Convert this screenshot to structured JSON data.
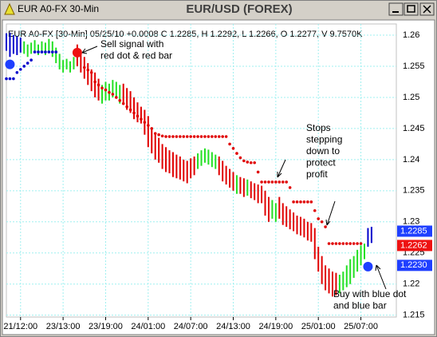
{
  "window_title": "EUR A0-FX 30-Min",
  "chart_data": {
    "type": "ohlc",
    "title": "EUR/USD (FOREX)",
    "subtitle": "EUR A0-FX [30-Min] 05/25/10  +0.0008 C 1.2285, H 1.2292, L 1.2266, O 1.2277, V 9.7570K",
    "xlim": [
      0,
      110
    ],
    "ylim": [
      1.2147,
      1.2618
    ],
    "xticks": [
      {
        "value": 4,
        "label": "21/12:00"
      },
      {
        "value": 16,
        "label": "23/13:00"
      },
      {
        "value": 28,
        "label": "23/19:00"
      },
      {
        "value": 40,
        "label": "24/01:00"
      },
      {
        "value": 52,
        "label": "24/07:00"
      },
      {
        "value": 64,
        "label": "24/13:00"
      },
      {
        "value": 76,
        "label": "24/19:00"
      },
      {
        "value": 88,
        "label": "25/01:00"
      },
      {
        "value": 100,
        "label": "25/07:00"
      }
    ],
    "yticks": [
      1.215,
      1.22,
      1.225,
      1.23,
      1.235,
      1.24,
      1.245,
      1.25,
      1.255,
      1.26
    ],
    "grid": true,
    "palette": {
      "r": "#e00000",
      "g": "#22e022",
      "b": "#0000cc"
    },
    "bars": {
      "high": [
        1.2603,
        1.2604,
        1.26,
        1.2598,
        1.2596,
        1.259,
        1.2585,
        1.2588,
        1.2592,
        1.2585,
        1.259,
        1.2588,
        1.2594,
        1.259,
        1.258,
        1.257,
        1.256,
        1.2562,
        1.2558,
        1.2565,
        1.2585,
        1.2575,
        1.2565,
        1.2555,
        1.2545,
        1.254,
        1.253,
        1.252,
        1.2525,
        1.2522,
        1.2528,
        1.2525,
        1.252,
        1.2522,
        1.2515,
        1.251,
        1.25,
        1.2492,
        1.2485,
        1.248,
        1.247,
        1.245,
        1.244,
        1.2435,
        1.2425,
        1.242,
        1.2415,
        1.2412,
        1.2408,
        1.2405,
        1.24,
        1.2398,
        1.2402,
        1.2405,
        1.241,
        1.2415,
        1.2418,
        1.2416,
        1.2412,
        1.2408,
        1.2405,
        1.2398,
        1.239,
        1.2385,
        1.238,
        1.2375,
        1.2372,
        1.237,
        1.2368,
        1.2365,
        1.2362,
        1.236,
        1.2358,
        1.235,
        1.234,
        1.2335,
        1.233,
        1.234,
        1.233,
        1.2325,
        1.232,
        1.2315,
        1.231,
        1.2308,
        1.2305,
        1.23,
        1.2298,
        1.229,
        1.226,
        1.2245,
        1.223,
        1.2225,
        1.222,
        1.2218,
        1.2215,
        1.222,
        1.223,
        1.224,
        1.2245,
        1.2255,
        1.2262,
        1.2265,
        1.229,
        1.2292
      ],
      "low": [
        1.2575,
        1.2565,
        1.257,
        1.2568,
        1.2572,
        1.257,
        1.2565,
        1.257,
        1.2575,
        1.2568,
        1.2572,
        1.2568,
        1.2575,
        1.2565,
        1.2555,
        1.2545,
        1.254,
        1.2545,
        1.254,
        1.2545,
        1.255,
        1.254,
        1.253,
        1.252,
        1.251,
        1.25,
        1.2495,
        1.249,
        1.2495,
        1.2495,
        1.25,
        1.2498,
        1.249,
        1.2488,
        1.248,
        1.2475,
        1.2465,
        1.246,
        1.2458,
        1.244,
        1.242,
        1.241,
        1.24,
        1.2395,
        1.2385,
        1.238,
        1.2378,
        1.2372,
        1.237,
        1.2368,
        1.2365,
        1.2362,
        1.237,
        1.2375,
        1.2385,
        1.239,
        1.2395,
        1.2392,
        1.2388,
        1.2385,
        1.2375,
        1.2365,
        1.236,
        1.2355,
        1.235,
        1.2345,
        1.2345,
        1.234,
        1.2342,
        1.2338,
        1.2335,
        1.233,
        1.233,
        1.231,
        1.23,
        1.2305,
        1.23,
        1.2305,
        1.2295,
        1.2292,
        1.2288,
        1.2285,
        1.228,
        1.2278,
        1.2275,
        1.227,
        1.2268,
        1.224,
        1.222,
        1.22,
        1.219,
        1.2185,
        1.218,
        1.2182,
        1.2185,
        1.219,
        1.2195,
        1.22,
        1.221,
        1.222,
        1.223,
        1.224,
        1.226,
        1.2266
      ],
      "colors": [
        "b",
        "b",
        "b",
        "b",
        "b",
        "g",
        "g",
        "g",
        "g",
        "g",
        "g",
        "g",
        "g",
        "g",
        "g",
        "g",
        "g",
        "g",
        "g",
        "g",
        "r",
        "r",
        "r",
        "r",
        "r",
        "r",
        "r",
        "g",
        "g",
        "g",
        "g",
        "g",
        "g",
        "r",
        "r",
        "r",
        "r",
        "r",
        "r",
        "r",
        "r",
        "r",
        "r",
        "r",
        "r",
        "r",
        "r",
        "r",
        "r",
        "r",
        "r",
        "r",
        "r",
        "r",
        "g",
        "g",
        "g",
        "g",
        "g",
        "g",
        "r",
        "r",
        "r",
        "r",
        "r",
        "g",
        "r",
        "r",
        "g",
        "r",
        "r",
        "r",
        "r",
        "r",
        "r",
        "g",
        "g",
        "r",
        "r",
        "r",
        "r",
        "r",
        "r",
        "r",
        "r",
        "r",
        "r",
        "r",
        "r",
        "r",
        "r",
        "r",
        "r",
        "r",
        "g",
        "g",
        "g",
        "g",
        "g",
        "g",
        "g",
        "g",
        "b",
        "b"
      ]
    },
    "stops_red": {
      "color": "#e00000",
      "x": [
        22,
        23,
        24,
        25,
        26,
        27,
        28,
        29,
        30,
        31,
        32,
        33,
        34,
        35,
        36,
        37,
        38,
        39,
        40,
        41,
        42,
        43,
        44,
        45,
        46,
        47,
        48,
        49,
        50,
        51,
        52,
        53,
        54,
        55,
        56,
        57,
        58,
        59,
        60,
        61,
        62,
        63,
        64,
        65,
        66,
        67,
        68,
        69,
        70,
        71,
        72,
        73,
        74,
        75,
        76,
        77,
        78,
        79,
        80,
        81,
        82,
        83,
        84,
        85,
        86,
        87,
        88,
        89,
        90,
        91,
        92,
        93,
        94,
        95,
        96,
        97,
        98,
        99,
        100
      ],
      "values": [
        1.2548,
        1.2544,
        1.254,
        1.2525,
        1.252,
        1.2515,
        1.2512,
        1.2508,
        1.2505,
        1.25,
        1.2495,
        1.249,
        1.2485,
        1.248,
        1.2475,
        1.247,
        1.2465,
        1.246,
        1.2455,
        1.245,
        1.2442,
        1.244,
        1.2438,
        1.2437,
        1.2437,
        1.2437,
        1.2437,
        1.2437,
        1.2437,
        1.2437,
        1.2437,
        1.2437,
        1.2437,
        1.2437,
        1.2437,
        1.2437,
        1.2437,
        1.2437,
        1.2437,
        1.2437,
        1.2437,
        1.2425,
        1.2418,
        1.241,
        1.2403,
        1.2398,
        1.2396,
        1.2395,
        1.2395,
        1.238,
        1.2364,
        1.2364,
        1.2364,
        1.2364,
        1.2364,
        1.2364,
        1.2364,
        1.2364,
        1.2355,
        1.2332,
        1.2332,
        1.2332,
        1.2332,
        1.2332,
        1.2332,
        1.2318,
        1.2305,
        1.23,
        1.2292,
        1.2265,
        1.2265,
        1.2265,
        1.2265,
        1.2265,
        1.2265,
        1.2265,
        1.2265,
        1.2265,
        1.2265
      ]
    },
    "stops_blue": {
      "color": "#0000cc",
      "x": [
        0,
        1,
        2,
        3,
        4,
        5,
        6,
        7,
        8,
        9,
        10,
        11,
        12,
        13,
        14
      ],
      "values": [
        1.253,
        1.253,
        1.253,
        1.254,
        1.2545,
        1.255,
        1.2555,
        1.256,
        1.2573,
        1.2573,
        1.2573,
        1.2573,
        1.2573,
        1.2573,
        1.2573
      ]
    },
    "signals": [
      {
        "x": 1,
        "value": 1.2553,
        "color": "#1f3fff"
      },
      {
        "x": 20,
        "value": 1.2572,
        "color": "#ee1111"
      },
      {
        "x": 102,
        "value": 1.2228,
        "color": "#1f3fff"
      }
    ],
    "price_labels": [
      {
        "value": 1.2285,
        "label": "1.2285",
        "color": "#1f3fff"
      },
      {
        "value": 1.2262,
        "label": "1.2262",
        "color": "#ee1111"
      },
      {
        "value": 1.223,
        "label": "1.2230",
        "color": "#1f3fff"
      }
    ],
    "annotations": [
      [
        "Sell signal with",
        "red dot & red bar"
      ],
      [
        "Stops",
        "stepping",
        "down to",
        "protect",
        "profit"
      ],
      [
        "Buy with blue dot",
        "and blue bar"
      ]
    ]
  }
}
